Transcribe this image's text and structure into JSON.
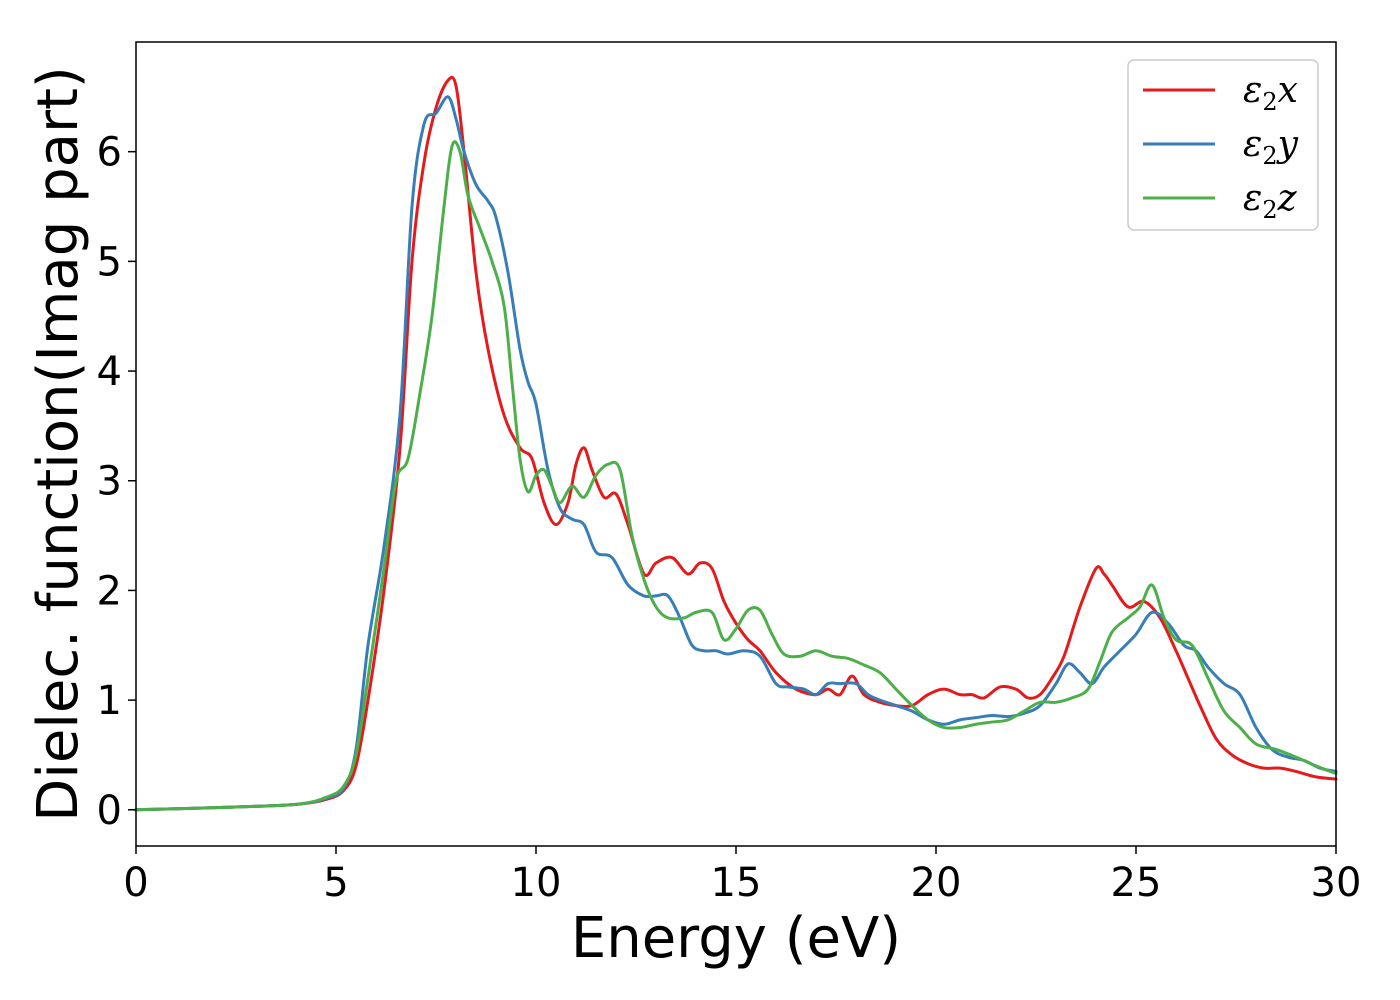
{
  "chart_data": {
    "type": "line",
    "title": "",
    "xlabel": "Energy (eV)",
    "ylabel": "Dielec. function(Imag part)",
    "xlim": [
      0,
      30
    ],
    "ylim": [
      -0.33,
      7.0
    ],
    "xticks": [
      "0",
      "5",
      "10",
      "15",
      "20",
      "25",
      "30"
    ],
    "yticks": [
      "0",
      "1",
      "2",
      "3",
      "4",
      "5",
      "6"
    ],
    "grid": false,
    "legend_position": "top-right",
    "series": [
      {
        "name": "ε2x",
        "color": "#e41a1c",
        "x": [
          0,
          2,
          4,
          4.8,
          5.2,
          5.5,
          5.8,
          6.2,
          6.6,
          6.9,
          7.2,
          7.5,
          7.8,
          8.0,
          8.2,
          8.5,
          8.8,
          9.2,
          9.6,
          9.9,
          10.2,
          10.5,
          10.8,
          11.0,
          11.2,
          11.4,
          11.7,
          12.0,
          12.3,
          12.7,
          13.0,
          13.4,
          13.8,
          14.1,
          14.4,
          14.7,
          15.0,
          15.3,
          15.6,
          16.0,
          16.5,
          17.0,
          17.3,
          17.6,
          17.9,
          18.2,
          18.6,
          19.0,
          19.4,
          19.8,
          20.2,
          20.6,
          20.9,
          21.2,
          21.6,
          22.0,
          22.3,
          22.6,
          22.9,
          23.2,
          23.6,
          24.0,
          24.2,
          24.4,
          24.8,
          25.2,
          25.6,
          26.0,
          26.3,
          26.6,
          27.0,
          27.4,
          27.8,
          28.2,
          28.6,
          29.0,
          29.5,
          30.0
        ],
        "y": [
          0.0,
          0.02,
          0.05,
          0.1,
          0.18,
          0.4,
          1.0,
          2.0,
          3.3,
          5.0,
          5.9,
          6.4,
          6.65,
          6.6,
          6.0,
          4.9,
          4.2,
          3.6,
          3.3,
          3.2,
          2.8,
          2.6,
          2.8,
          3.15,
          3.3,
          3.1,
          2.85,
          2.88,
          2.6,
          2.15,
          2.25,
          2.3,
          2.15,
          2.25,
          2.2,
          1.9,
          1.7,
          1.55,
          1.45,
          1.25,
          1.1,
          1.05,
          1.1,
          1.05,
          1.22,
          1.05,
          0.98,
          0.95,
          0.95,
          1.05,
          1.1,
          1.05,
          1.05,
          1.02,
          1.12,
          1.1,
          1.02,
          1.05,
          1.2,
          1.4,
          1.85,
          2.2,
          2.15,
          2.05,
          1.85,
          1.9,
          1.75,
          1.45,
          1.2,
          0.95,
          0.65,
          0.5,
          0.42,
          0.38,
          0.38,
          0.35,
          0.3,
          0.28
        ]
      },
      {
        "name": "ε2y",
        "color": "#377eb8",
        "x": [
          0,
          2,
          4,
          4.8,
          5.2,
          5.5,
          5.8,
          6.2,
          6.6,
          6.9,
          7.2,
          7.5,
          7.8,
          8.0,
          8.2,
          8.5,
          8.8,
          9.0,
          9.3,
          9.6,
          9.8,
          10.0,
          10.3,
          10.6,
          10.9,
          11.2,
          11.5,
          11.9,
          12.3,
          12.7,
          13.0,
          13.3,
          13.6,
          13.9,
          14.2,
          14.5,
          14.8,
          15.2,
          15.6,
          16.0,
          16.3,
          16.7,
          17.0,
          17.3,
          17.6,
          18.0,
          18.3,
          18.6,
          19.0,
          19.4,
          19.8,
          20.2,
          20.6,
          21.0,
          21.4,
          21.8,
          22.2,
          22.6,
          23.0,
          23.3,
          23.6,
          23.9,
          24.2,
          24.6,
          25.0,
          25.4,
          25.8,
          26.2,
          26.5,
          26.8,
          27.2,
          27.6,
          28.0,
          28.4,
          28.8,
          29.2,
          29.6,
          30.0
        ],
        "y": [
          0.0,
          0.02,
          0.05,
          0.11,
          0.2,
          0.55,
          1.5,
          2.4,
          3.6,
          5.5,
          6.25,
          6.35,
          6.5,
          6.3,
          6.0,
          5.7,
          5.55,
          5.4,
          4.9,
          4.2,
          3.9,
          3.7,
          3.1,
          2.75,
          2.65,
          2.6,
          2.35,
          2.3,
          2.05,
          1.95,
          1.95,
          1.95,
          1.75,
          1.5,
          1.45,
          1.45,
          1.42,
          1.45,
          1.4,
          1.15,
          1.12,
          1.1,
          1.05,
          1.15,
          1.15,
          1.15,
          1.05,
          1.0,
          0.95,
          0.9,
          0.82,
          0.78,
          0.82,
          0.84,
          0.86,
          0.85,
          0.88,
          0.95,
          1.15,
          1.33,
          1.25,
          1.15,
          1.3,
          1.45,
          1.6,
          1.8,
          1.7,
          1.5,
          1.45,
          1.3,
          1.15,
          1.05,
          0.75,
          0.55,
          0.48,
          0.45,
          0.38,
          0.35
        ]
      },
      {
        "name": "ε2z",
        "color": "#4daf4a",
        "x": [
          0,
          2,
          4,
          4.8,
          5.2,
          5.5,
          5.8,
          6.2,
          6.5,
          6.8,
          7.1,
          7.4,
          7.7,
          7.9,
          8.1,
          8.3,
          8.6,
          8.9,
          9.2,
          9.4,
          9.6,
          9.8,
          10.0,
          10.2,
          10.4,
          10.6,
          10.9,
          11.2,
          11.5,
          11.8,
          12.1,
          12.4,
          12.7,
          13.0,
          13.3,
          13.7,
          14.0,
          14.4,
          14.7,
          15.0,
          15.3,
          15.6,
          15.9,
          16.2,
          16.6,
          17.0,
          17.4,
          17.8,
          18.2,
          18.6,
          19.0,
          19.4,
          19.8,
          20.2,
          20.6,
          21.0,
          21.4,
          21.8,
          22.2,
          22.6,
          23.0,
          23.4,
          23.8,
          24.1,
          24.4,
          24.8,
          25.1,
          25.4,
          25.7,
          26.0,
          26.4,
          26.8,
          27.2,
          27.6,
          28.0,
          28.5,
          29.0,
          29.5,
          30.0
        ],
        "y": [
          0.0,
          0.02,
          0.05,
          0.12,
          0.22,
          0.5,
          1.2,
          2.2,
          3.0,
          3.2,
          3.8,
          4.5,
          5.5,
          6.05,
          6.0,
          5.6,
          5.3,
          5.0,
          4.6,
          3.9,
          3.2,
          2.9,
          3.05,
          3.1,
          2.95,
          2.8,
          2.95,
          2.85,
          3.05,
          3.15,
          3.1,
          2.5,
          2.1,
          1.85,
          1.75,
          1.75,
          1.8,
          1.8,
          1.55,
          1.65,
          1.82,
          1.82,
          1.6,
          1.42,
          1.4,
          1.45,
          1.4,
          1.38,
          1.32,
          1.25,
          1.1,
          0.95,
          0.82,
          0.75,
          0.75,
          0.78,
          0.8,
          0.82,
          0.9,
          0.98,
          0.98,
          1.02,
          1.1,
          1.35,
          1.62,
          1.75,
          1.85,
          2.05,
          1.75,
          1.55,
          1.5,
          1.2,
          0.9,
          0.75,
          0.6,
          0.55,
          0.48,
          0.4,
          0.33
        ]
      }
    ]
  }
}
